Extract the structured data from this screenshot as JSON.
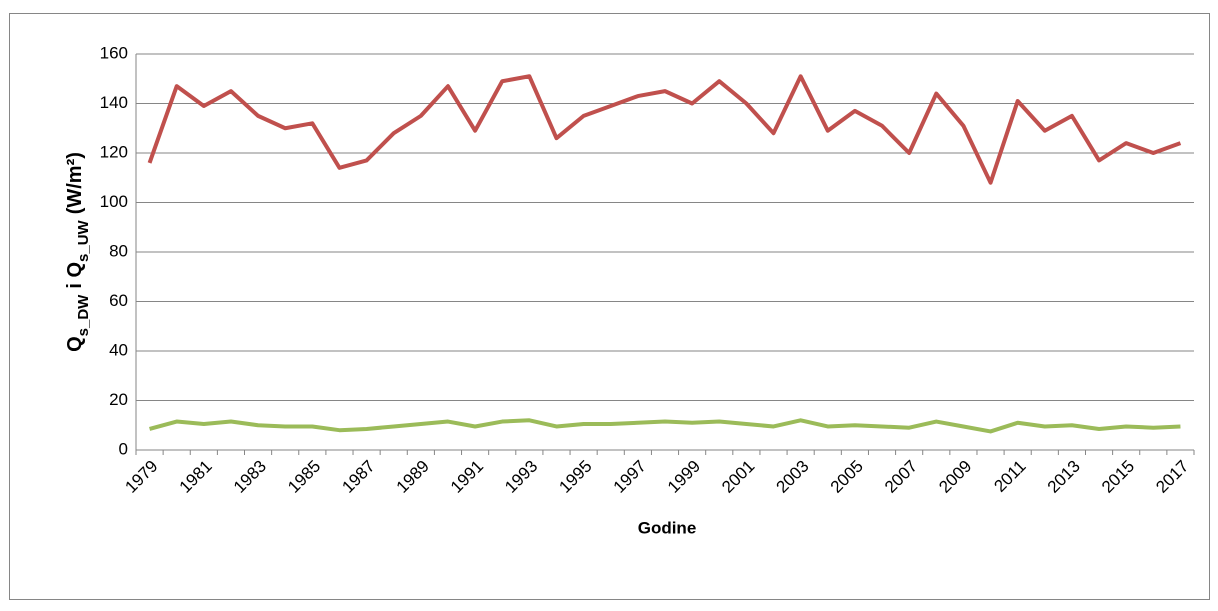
{
  "chart_data": {
    "type": "line",
    "x_label": "Godine",
    "y_label": [
      "Q",
      "s_DW",
      "i Q",
      "s_UW",
      "(W/m²)"
    ],
    "categories": [
      "1979",
      null,
      "1981",
      null,
      "1983",
      null,
      "1985",
      null,
      "1987",
      null,
      "1989",
      null,
      "1991",
      null,
      "1993",
      null,
      "1995",
      null,
      "1997",
      null,
      "1999",
      null,
      "2001",
      null,
      "2003",
      null,
      "2005",
      null,
      "2007",
      null,
      "2009",
      null,
      "2011",
      null,
      "2013",
      null,
      "2015",
      null,
      "2017"
    ],
    "series": [
      {
        "color": "#c0504d",
        "values": [
          116,
          147,
          139,
          145,
          135,
          130,
          132,
          114,
          117,
          128,
          135,
          147,
          129,
          149,
          151,
          126,
          135,
          139,
          143,
          145,
          140,
          149,
          140,
          128,
          151,
          129,
          137,
          131,
          120,
          144,
          131,
          108,
          141,
          129,
          135,
          117,
          124,
          120,
          124
        ]
      },
      {
        "color": "#9bbb59",
        "values": [
          8.5,
          11.5,
          10.5,
          11.5,
          10,
          9.5,
          9.5,
          8,
          8.5,
          9.5,
          10.5,
          11.5,
          9.5,
          11.5,
          12,
          9.5,
          10.5,
          10.5,
          11,
          11.5,
          11,
          11.5,
          10.5,
          9.5,
          12,
          9.5,
          10,
          9.5,
          9,
          11.5,
          9.5,
          7.5,
          11,
          9.5,
          10,
          8.5,
          9.5,
          9,
          9.5
        ]
      }
    ],
    "ylim": [
      0,
      160
    ],
    "yticks": [
      0,
      20,
      40,
      60,
      80,
      100,
      120,
      140,
      160
    ],
    "grid": true
  }
}
